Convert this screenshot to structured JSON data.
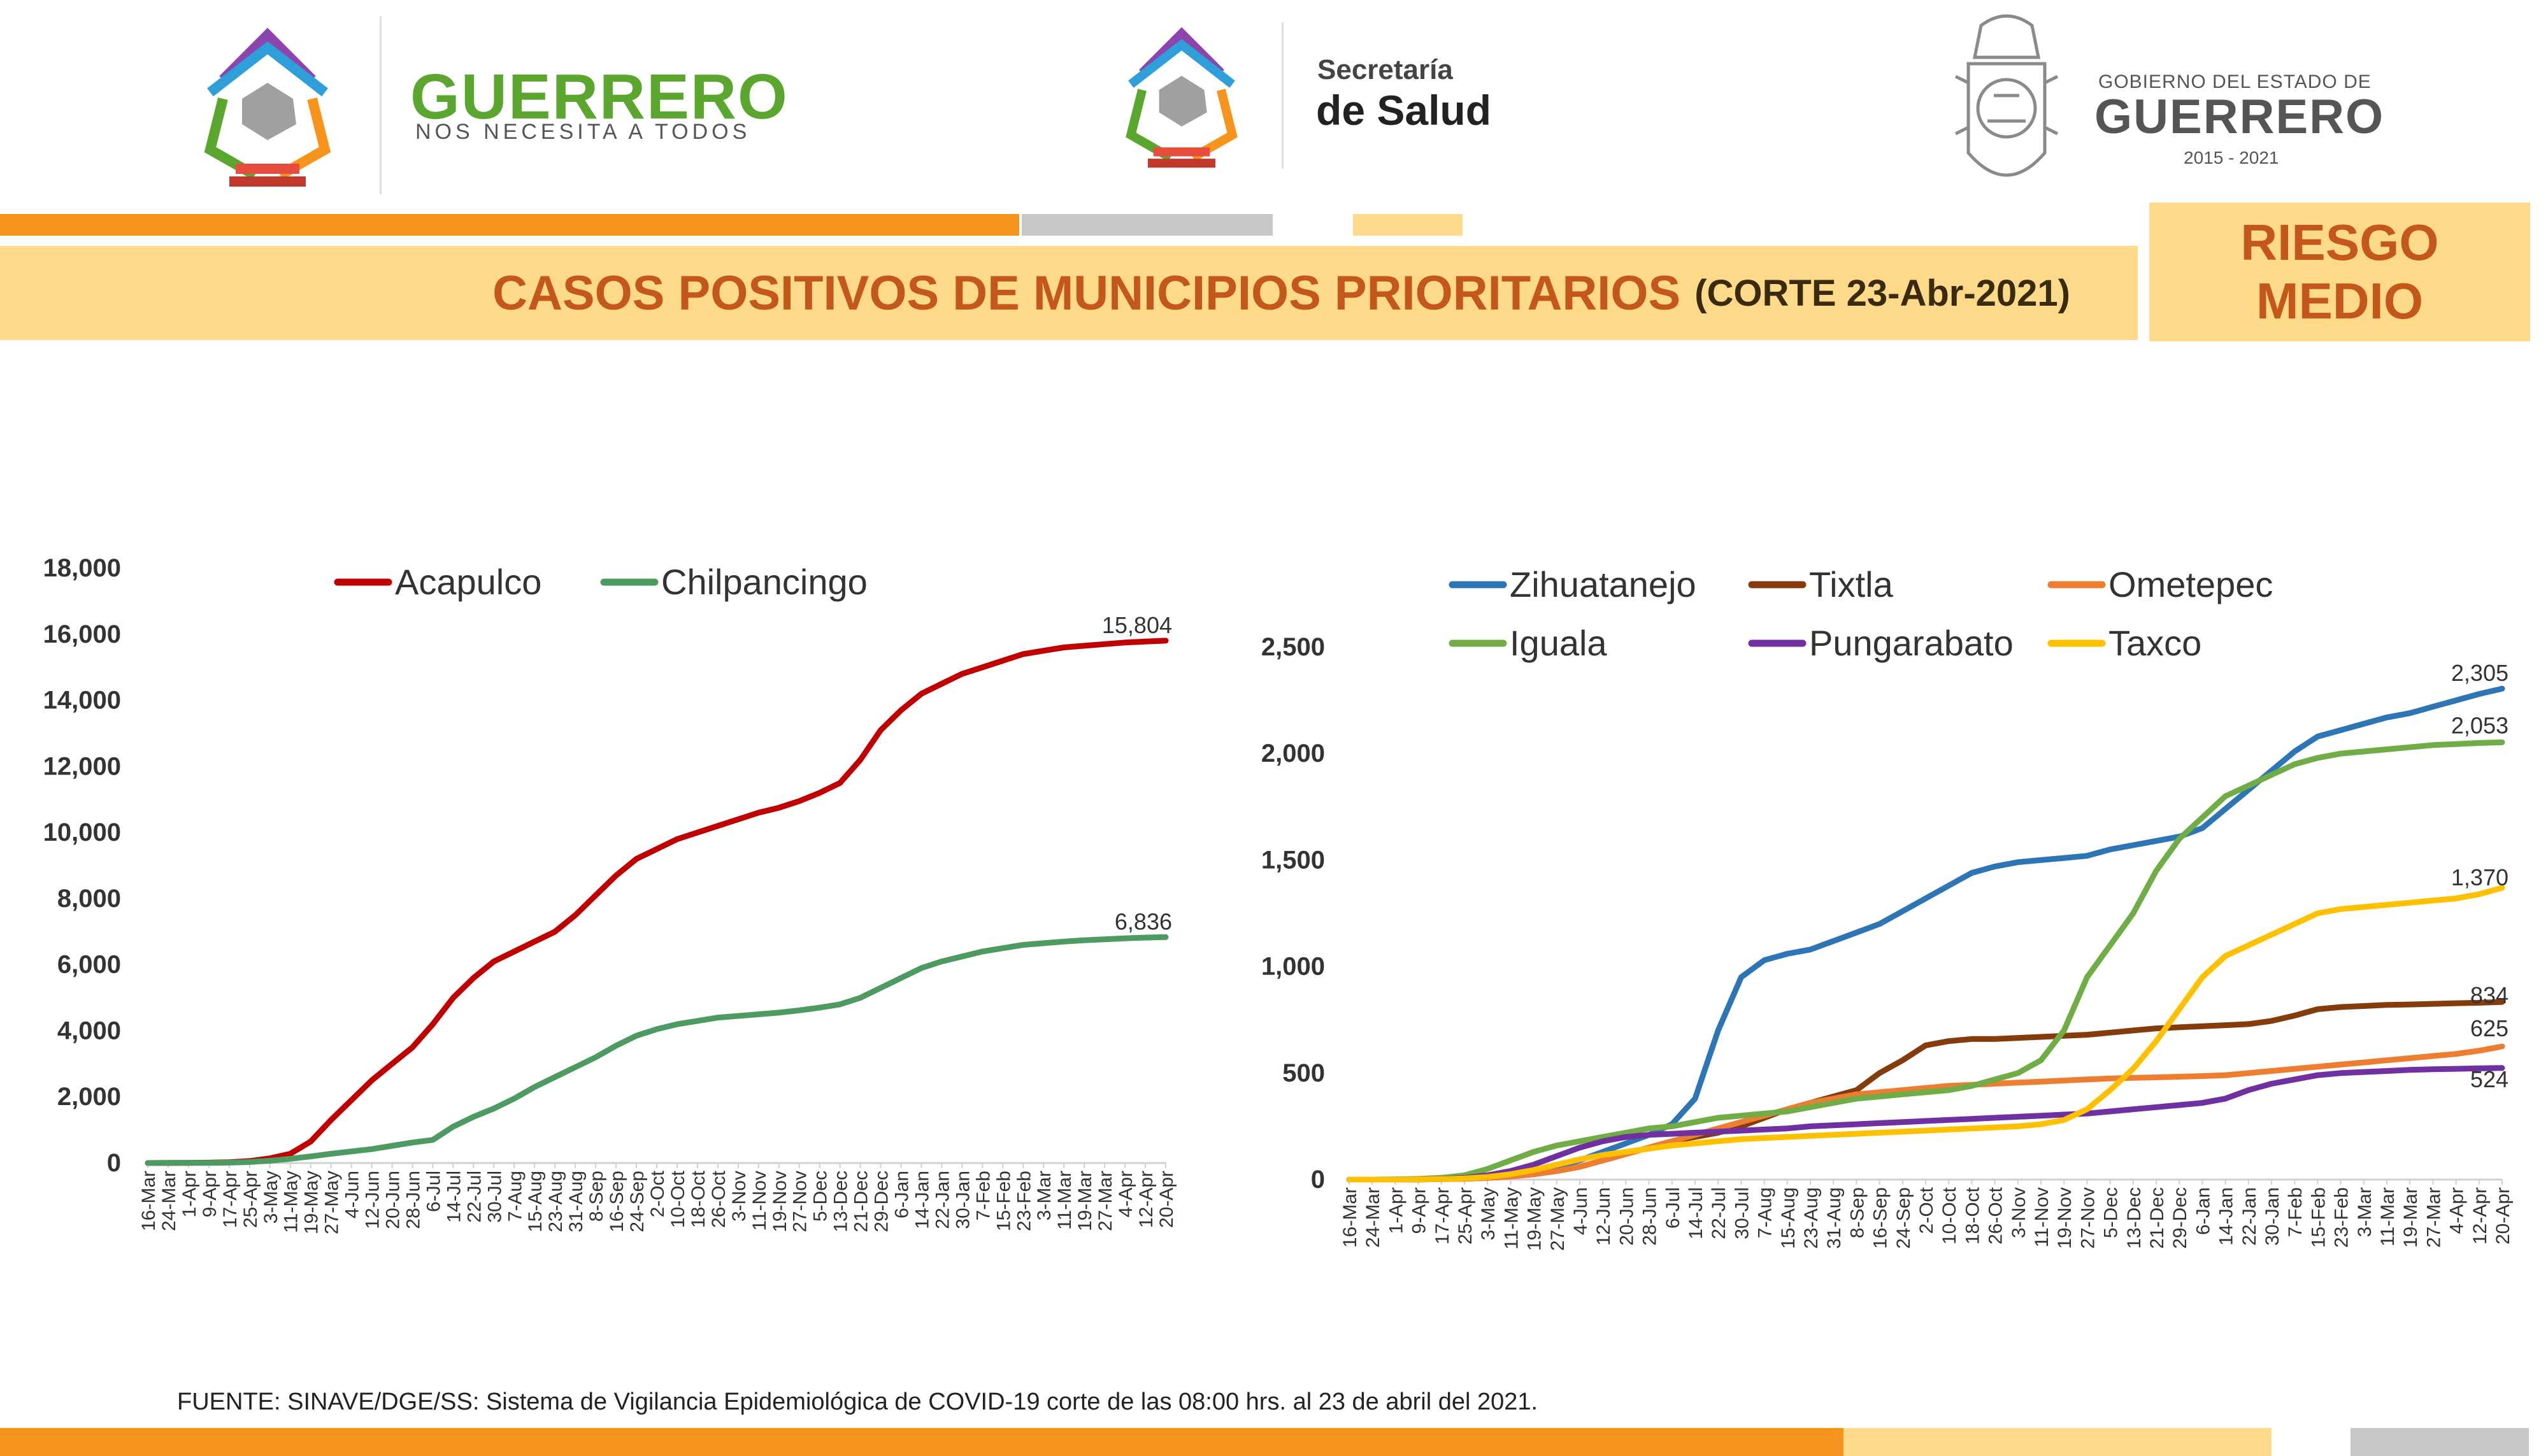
{
  "header": {
    "logo1": {
      "title": "GUERRERO",
      "subtitle": "NOS NECESITA A TODOS"
    },
    "logo2": {
      "line1": "Secretaría",
      "line2": "de Salud"
    },
    "logo3": {
      "line1": "GOBIERNO DEL ESTADO DE",
      "line2": "GUERRERO",
      "line3": "2015 - 2021"
    }
  },
  "title": {
    "main": "CASOS POSITIVOS DE MUNICIPIOS PRIORITARIOS",
    "sub": "(CORTE 23-Abr-2021)"
  },
  "risk": {
    "line1": "RIESGO",
    "line2": "MEDIO"
  },
  "source": "FUENTE: SINAVE/DGE/SS: Sistema de Vigilancia Epidemiológica de COVID-19 corte de las 08:00 hrs. al 23 de abril del 2021.",
  "colors": {
    "orange": "#f7941d",
    "gray": "#c8c8c8",
    "lightYellow": "#fdd98a",
    "titleText": "#c4571a"
  },
  "chart_data": [
    {
      "type": "line",
      "x": [
        "16-Mar",
        "24-Mar",
        "1-Apr",
        "9-Apr",
        "17-Apr",
        "25-Apr",
        "3-May",
        "11-May",
        "19-May",
        "27-May",
        "4-Jun",
        "12-Jun",
        "20-Jun",
        "28-Jun",
        "6-Jul",
        "14-Jul",
        "22-Jul",
        "30-Jul",
        "7-Aug",
        "15-Aug",
        "23-Aug",
        "31-Aug",
        "8-Sep",
        "16-Sep",
        "24-Sep",
        "2-Oct",
        "10-Oct",
        "18-Oct",
        "26-Oct",
        "3-Nov",
        "11-Nov",
        "19-Nov",
        "27-Nov",
        "5-Dec",
        "13-Dec",
        "21-Dec",
        "29-Dec",
        "6-Jan",
        "14-Jan",
        "22-Jan",
        "30-Jan",
        "7-Feb",
        "15-Feb",
        "23-Feb",
        "3-Mar",
        "11-Mar",
        "19-Mar",
        "27-Mar",
        "4-Apr",
        "12-Apr",
        "20-Apr"
      ],
      "series": [
        {
          "name": "Acapulco",
          "color": "#c00000",
          "end_label": "15,804",
          "values": [
            0,
            2,
            5,
            12,
            25,
            60,
            140,
            280,
            650,
            1300,
            1900,
            2500,
            3000,
            3500,
            4200,
            5000,
            5600,
            6100,
            6400,
            6700,
            7000,
            7500,
            8100,
            8700,
            9200,
            9500,
            9800,
            10000,
            10200,
            10400,
            10600,
            10750,
            10950,
            11200,
            11500,
            12200,
            13100,
            13700,
            14200,
            14500,
            14800,
            15000,
            15200,
            15400,
            15500,
            15600,
            15650,
            15700,
            15750,
            15780,
            15804
          ]
        },
        {
          "name": "Chilpancingo",
          "color": "#4e9a63",
          "end_label": "6,836",
          "values": [
            0,
            1,
            3,
            6,
            12,
            30,
            70,
            130,
            200,
            280,
            350,
            420,
            520,
            620,
            700,
            1100,
            1400,
            1650,
            1950,
            2300,
            2600,
            2900,
            3200,
            3550,
            3850,
            4050,
            4200,
            4300,
            4400,
            4450,
            4500,
            4550,
            4620,
            4700,
            4800,
            5000,
            5300,
            5600,
            5900,
            6100,
            6250,
            6400,
            6500,
            6600,
            6650,
            6700,
            6740,
            6770,
            6800,
            6820,
            6836
          ]
        }
      ],
      "ylim": [
        0,
        18000
      ],
      "yticks": [
        "0",
        "2,000",
        "4,000",
        "6,000",
        "8,000",
        "10,000",
        "12,000",
        "14,000",
        "16,000",
        "18,000"
      ],
      "legend": "top"
    },
    {
      "type": "line",
      "x": [
        "16-Mar",
        "24-Mar",
        "1-Apr",
        "9-Apr",
        "17-Apr",
        "25-Apr",
        "3-May",
        "11-May",
        "19-May",
        "27-May",
        "4-Jun",
        "12-Jun",
        "20-Jun",
        "28-Jun",
        "6-Jul",
        "14-Jul",
        "22-Jul",
        "30-Jul",
        "7-Aug",
        "15-Aug",
        "23-Aug",
        "31-Aug",
        "8-Sep",
        "16-Sep",
        "24-Sep",
        "2-Oct",
        "10-Oct",
        "18-Oct",
        "26-Oct",
        "3-Nov",
        "11-Nov",
        "19-Nov",
        "27-Nov",
        "5-Dec",
        "13-Dec",
        "21-Dec",
        "29-Dec",
        "6-Jan",
        "14-Jan",
        "22-Jan",
        "30-Jan",
        "7-Feb",
        "15-Feb",
        "23-Feb",
        "3-Mar",
        "11-Mar",
        "19-Mar",
        "27-Mar",
        "4-Apr",
        "12-Apr",
        "20-Apr"
      ],
      "series": [
        {
          "name": "Zihuatanejo",
          "color": "#2e75b6",
          "end_label": "2,305",
          "values": [
            0,
            0,
            1,
            2,
            4,
            8,
            15,
            25,
            40,
            60,
            90,
            130,
            170,
            210,
            260,
            380,
            700,
            950,
            1030,
            1060,
            1080,
            1120,
            1160,
            1200,
            1260,
            1320,
            1380,
            1440,
            1470,
            1490,
            1500,
            1510,
            1520,
            1550,
            1570,
            1590,
            1610,
            1650,
            1740,
            1830,
            1920,
            2010,
            2080,
            2110,
            2140,
            2170,
            2190,
            2220,
            2250,
            2280,
            2305
          ]
        },
        {
          "name": "Tixtla",
          "color": "#843c0c",
          "end_label": "834",
          "values": [
            0,
            0,
            0,
            1,
            2,
            4,
            8,
            15,
            25,
            40,
            60,
            90,
            120,
            150,
            180,
            200,
            220,
            250,
            290,
            330,
            360,
            390,
            420,
            500,
            560,
            630,
            650,
            660,
            660,
            665,
            670,
            675,
            680,
            690,
            700,
            710,
            715,
            720,
            725,
            730,
            745,
            770,
            800,
            810,
            815,
            820,
            822,
            825,
            828,
            830,
            834
          ]
        },
        {
          "name": "Ometepec",
          "color": "#ed7d31",
          "end_label": "625",
          "values": [
            0,
            0,
            0,
            1,
            2,
            4,
            8,
            15,
            25,
            40,
            60,
            90,
            120,
            150,
            180,
            210,
            240,
            270,
            300,
            330,
            360,
            380,
            400,
            410,
            420,
            430,
            440,
            445,
            450,
            455,
            460,
            465,
            470,
            475,
            478,
            480,
            483,
            486,
            490,
            500,
            510,
            520,
            530,
            540,
            550,
            560,
            570,
            580,
            590,
            605,
            625
          ]
        },
        {
          "name": "Iguala",
          "color": "#70ad47",
          "end_label": "2,053",
          "values": [
            0,
            0,
            1,
            3,
            8,
            20,
            50,
            90,
            130,
            160,
            180,
            200,
            220,
            240,
            250,
            270,
            290,
            300,
            310,
            320,
            340,
            360,
            380,
            390,
            400,
            410,
            420,
            440,
            470,
            500,
            560,
            700,
            950,
            1100,
            1250,
            1450,
            1600,
            1700,
            1800,
            1850,
            1900,
            1950,
            1980,
            2000,
            2010,
            2020,
            2030,
            2040,
            2045,
            2050,
            2053
          ]
        },
        {
          "name": "Pungarabato",
          "color": "#7030a0",
          "end_label": "524",
          "values": [
            0,
            0,
            0,
            1,
            3,
            8,
            20,
            40,
            70,
            110,
            150,
            180,
            200,
            210,
            215,
            220,
            225,
            230,
            235,
            240,
            250,
            255,
            260,
            265,
            270,
            275,
            280,
            285,
            290,
            295,
            300,
            305,
            310,
            320,
            330,
            340,
            350,
            360,
            380,
            420,
            450,
            470,
            490,
            500,
            505,
            510,
            515,
            518,
            520,
            522,
            524
          ]
        },
        {
          "name": "Taxco",
          "color": "#ffc000",
          "end_label": "1,370",
          "values": [
            0,
            0,
            0,
            1,
            2,
            5,
            12,
            25,
            45,
            70,
            95,
            115,
            130,
            145,
            160,
            170,
            180,
            190,
            195,
            200,
            205,
            210,
            215,
            220,
            225,
            230,
            235,
            240,
            245,
            250,
            260,
            280,
            330,
            420,
            520,
            650,
            800,
            950,
            1050,
            1100,
            1150,
            1200,
            1250,
            1270,
            1280,
            1290,
            1300,
            1310,
            1320,
            1340,
            1370
          ]
        }
      ],
      "ylim": [
        0,
        2500
      ],
      "yticks": [
        "0",
        "500",
        "1,000",
        "1,500",
        "2,000",
        "2,500"
      ],
      "legend": "top"
    }
  ]
}
